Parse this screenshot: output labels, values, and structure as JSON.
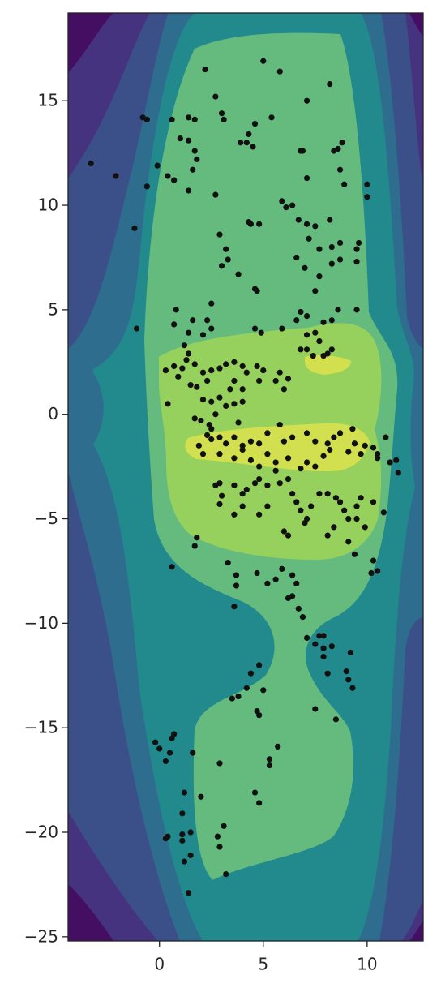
{
  "chart_data": {
    "type": "scatter",
    "color": "#111111",
    "xlim": [
      -4.4,
      12.7
    ],
    "ylim": [
      -25.2,
      19.2
    ],
    "xticks": [
      0,
      5,
      10
    ],
    "yticks": [
      {
        "value": -25,
        "label": "−25"
      },
      {
        "value": -20,
        "label": "−20"
      },
      {
        "value": -15,
        "label": "−15"
      },
      {
        "value": -10,
        "label": "−10"
      },
      {
        "value": -5,
        "label": "−5"
      },
      0,
      5,
      10,
      15
    ],
    "x": [
      -3.3,
      -2.1,
      -1.2,
      -1.1,
      -0.8,
      -0.6,
      -0.6,
      -0.1,
      0.4,
      0.6,
      0.7,
      1.0,
      1.4,
      1.4,
      1.7,
      1.7,
      1.8,
      1.6,
      1.4,
      2.2,
      2.7,
      3.0,
      3.1,
      2.7,
      2.9,
      3.0,
      3.2,
      3.8,
      3.9,
      4.2,
      4.3,
      4.6,
      4.5,
      5.0,
      5.8,
      5.4,
      7.1,
      8.2,
      8.8,
      8.6,
      8.4,
      7.1,
      8.7,
      8.9,
      10.0,
      10.0,
      6.8,
      6.9,
      5.9,
      6.1,
      6.4,
      6.7,
      7.1,
      7.5,
      8.2,
      7.2,
      7.7,
      8.3,
      8.7,
      9.5,
      9.6,
      8.7,
      8.3,
      6.6,
      7.0,
      7.5,
      7.7,
      9.5,
      4.6,
      4.7,
      4.3,
      4.4,
      4.8,
      3.3,
      2.5,
      2.3,
      1.6,
      0.8,
      0.7,
      1.4,
      2.1,
      2.5,
      4.6,
      4.9,
      5.9,
      6.6,
      7.1,
      6.8,
      7.1,
      7.9,
      8.6,
      8.3,
      9.5,
      7.5,
      7.7,
      8.1,
      8.3,
      7.1,
      7.4,
      7.9,
      6.8,
      1.2,
      1.4,
      1.3,
      1.1,
      0.7,
      0.3,
      0.9,
      1.7,
      2.1,
      2.5,
      2.9,
      3.2,
      3.6,
      4.0,
      4.2,
      4.7,
      5.0,
      5.8,
      6.2,
      6.0,
      5.6,
      4.8,
      3.6,
      4.0,
      3.4,
      2.9,
      2.5,
      2.1,
      1.8,
      2.3,
      1.5,
      0.4,
      1.7,
      2.0,
      2.4,
      2.7,
      3.2,
      3.6,
      4.0,
      3.8,
      2.5,
      2.5,
      2.3,
      2.9,
      3.6,
      4.0,
      4.4,
      4.8,
      5.2,
      5.8,
      6.0,
      6.4,
      7.1,
      7.5,
      8.1,
      8.4,
      8.7,
      9.3,
      9.4,
      9.9,
      10.3,
      10.5,
      10.9,
      11.1,
      11.4,
      11.5,
      10.5,
      9.7,
      9.1,
      8.2,
      7.9,
      7.5,
      7.1,
      6.8,
      6.2,
      5.6,
      5.2,
      4.8,
      4.4,
      4.0,
      3.6,
      3.2,
      2.9,
      2.1,
      1.9,
      2.7,
      2.9,
      3.6,
      4.0,
      4.2,
      4.6,
      4.8,
      5.2,
      5.6,
      5.8,
      6.2,
      6.4,
      6.6,
      6.8,
      7.1,
      7.0,
      7.3,
      7.7,
      8.1,
      8.5,
      8.7,
      8.9,
      9.1,
      9.5,
      9.7,
      9.5,
      9.9,
      10.3,
      10.8,
      8.4,
      8.1,
      9.1,
      9.4,
      10.3,
      10.5,
      10.2,
      5.9,
      6.2,
      6.0,
      5.2,
      4.8,
      4.0,
      3.6,
      3.0,
      2.9,
      1.8,
      1.7,
      0.6,
      3.3,
      3.7,
      4.7,
      5.2,
      5.6,
      6.4,
      6.6,
      6.4,
      6.2,
      6.7,
      6.9,
      3.6,
      3.7,
      7.1,
      7.7,
      7.9,
      7.5,
      7.9,
      8.3,
      9.2,
      7.9,
      8.1,
      9.0,
      9.1,
      9.3,
      4.8,
      4.4,
      4.2,
      5.0,
      4.7,
      4.8,
      3.5,
      3.8,
      7.5,
      8.5,
      -0.2,
      0.0,
      0.5,
      0.6,
      0.7,
      0.3,
      1.6,
      2.9,
      5.7,
      5.3,
      5.3,
      4.6,
      4.8,
      1.2,
      2.0,
      1.1,
      0.4,
      0.3,
      1.1,
      1.1,
      1.5,
      2.9,
      2.8,
      3.1,
      1.2,
      1.5,
      1.4,
      3.2
    ],
    "values": [
      12.0,
      11.4,
      8.9,
      4.1,
      14.2,
      14.1,
      10.9,
      11.9,
      11.4,
      14.1,
      11.2,
      13.2,
      13.1,
      14.2,
      14.1,
      12.6,
      12.2,
      11.7,
      10.7,
      16.5,
      15.2,
      14.4,
      14.1,
      10.5,
      8.6,
      7.1,
      7.9,
      6.7,
      13.0,
      13.0,
      13.4,
      13.9,
      12.8,
      16.9,
      16.4,
      14.2,
      15.0,
      15.8,
      13.0,
      12.7,
      12.6,
      11.3,
      11.7,
      11.0,
      11.0,
      10.4,
      12.6,
      12.6,
      10.2,
      9.9,
      10.0,
      9.3,
      9.1,
      9.0,
      9.3,
      8.4,
      7.9,
      8.0,
      8.2,
      7.9,
      8.2,
      7.4,
      7.2,
      7.5,
      7.0,
      5.9,
      6.6,
      7.3,
      6.0,
      5.9,
      9.2,
      9.1,
      9.1,
      7.4,
      5.3,
      4.5,
      4.5,
      5.0,
      4.3,
      3.9,
      3.8,
      4.1,
      4.1,
      3.9,
      4.1,
      4.5,
      3.8,
      4.9,
      4.7,
      4.4,
      5.0,
      4.5,
      5.0,
      3.9,
      3.5,
      2.9,
      3.1,
      3.1,
      2.8,
      2.8,
      3.1,
      3.3,
      2.9,
      2.6,
      2.2,
      2.3,
      2.1,
      1.8,
      2.4,
      2.0,
      2.1,
      2.2,
      2.4,
      2.5,
      2.3,
      2.0,
      2.3,
      2.1,
      2.0,
      1.7,
      1.2,
      1.6,
      1.6,
      1.6,
      1.2,
      1.2,
      0.8,
      0.6,
      0.7,
      1.3,
      1.6,
      1.4,
      0.5,
      -0.2,
      -0.3,
      -0.5,
      0.0,
      0.4,
      0.5,
      0.6,
      -0.4,
      -0.7,
      -1.2,
      -1.0,
      -1.1,
      -1.1,
      -1.5,
      -1.3,
      -1.4,
      -0.9,
      -0.5,
      -1.3,
      -1.1,
      -0.9,
      -1.3,
      -1.4,
      -1.1,
      -0.9,
      -0.7,
      -1.4,
      -1.5,
      -1.6,
      -1.9,
      -1.1,
      -2.3,
      -2.2,
      -2.8,
      -2.1,
      -1.9,
      -1.8,
      -1.7,
      -2.0,
      -2.5,
      -2.3,
      -2.6,
      -2.1,
      -2.3,
      -1.9,
      -2.5,
      -2.2,
      -1.7,
      -2.1,
      -1.4,
      -1.9,
      -1.9,
      -1.5,
      -3.4,
      -3.3,
      -3.4,
      -3.8,
      -3.6,
      -3.3,
      -3.1,
      -3.4,
      -2.7,
      -3.3,
      -3.1,
      -3.8,
      -4.2,
      -4.6,
      -5.0,
      -5.2,
      -4.4,
      -3.8,
      -3.8,
      -4.0,
      -4.2,
      -4.6,
      -5.0,
      -4.4,
      -4.0,
      -5.0,
      -5.4,
      -4.2,
      -4.7,
      -5.4,
      -5.8,
      -6.1,
      -6.7,
      -7.0,
      -7.5,
      -7.6,
      -7.4,
      -5.8,
      -5.6,
      -4.4,
      -4.8,
      -4.4,
      -4.8,
      -3.9,
      -4.3,
      -5.9,
      -6.3,
      -7.3,
      -7.1,
      -7.7,
      -7.6,
      -8.1,
      -7.9,
      -7.7,
      -8.1,
      -8.7,
      -8.8,
      -9.3,
      -9.7,
      -9.2,
      -8.2,
      -10.7,
      -10.6,
      -10.6,
      -11.0,
      -11.2,
      -11.1,
      -11.4,
      -11.6,
      -12.4,
      -12.3,
      -12.7,
      -13.1,
      -12.0,
      -12.4,
      -13.1,
      -13.2,
      -14.2,
      -14.4,
      -13.6,
      -13.5,
      -14.1,
      -14.6,
      -15.7,
      -16.0,
      -16.2,
      -15.5,
      -15.3,
      -16.6,
      -16.2,
      -16.7,
      -15.9,
      -16.5,
      -16.8,
      -18.1,
      -18.6,
      -18.1,
      -18.3,
      -19.1,
      -20.2,
      -20.3,
      -20.1,
      -20.4,
      -20.0,
      -20.7,
      -20.2,
      -19.7,
      -21.4,
      -21.1,
      -22.9,
      -22.0
    ]
  }
}
